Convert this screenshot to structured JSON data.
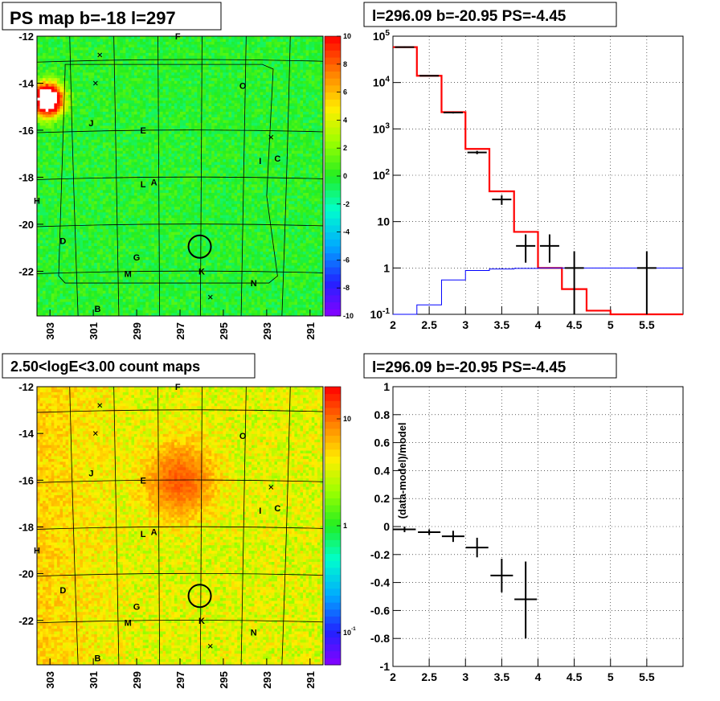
{
  "charts": [
    {
      "id": "psmap",
      "type": "heatmap",
      "title": "PS map b=-18 l=297",
      "xticks": [
        "303",
        "301",
        "299",
        "297",
        "295",
        "293",
        "291"
      ],
      "xtick_values": [
        303,
        301,
        299,
        297,
        295,
        293,
        291
      ],
      "yticks": [
        "-12",
        "-14",
        "-16",
        "-18",
        "-20",
        "-22"
      ],
      "ytick_values": [
        -12,
        -14,
        -16,
        -18,
        -20,
        -22
      ],
      "xlim": [
        303.6,
        290.4
      ],
      "ylim": [
        -23.9,
        -12
      ],
      "colorbar": {
        "scale": "linear",
        "range": [
          -10,
          10
        ],
        "labels": [
          "10",
          "8",
          "6",
          "4",
          "2",
          "0",
          "-2",
          "-4",
          "-6",
          "-8",
          "-10"
        ],
        "label_values": [
          10,
          8,
          6,
          4,
          2,
          0,
          -2,
          -4,
          -6,
          -8,
          -10
        ]
      },
      "background_level": 0.0,
      "hot_spot": {
        "l": 303.1,
        "b": -14.7,
        "value": 10
      },
      "source_circle": {
        "l": 296.09,
        "b": -20.95
      },
      "sources": [
        {
          "label": "F",
          "l": 297.1,
          "b": -12.0
        },
        {
          "label": "O",
          "l": 294.1,
          "b": -14.1
        },
        {
          "label": "J",
          "l": 301.1,
          "b": -15.7
        },
        {
          "label": "E",
          "l": 298.7,
          "b": -16.0
        },
        {
          "label": "I",
          "l": 293.3,
          "b": -17.3
        },
        {
          "label": "C",
          "l": 292.5,
          "b": -17.2
        },
        {
          "label": "L",
          "l": 298.7,
          "b": -18.3
        },
        {
          "label": "A",
          "l": 298.2,
          "b": -18.2
        },
        {
          "label": "H",
          "l": 303.6,
          "b": -19.0
        },
        {
          "label": "D",
          "l": 302.4,
          "b": -20.7
        },
        {
          "label": "G",
          "l": 299.0,
          "b": -21.4
        },
        {
          "label": "M",
          "l": 299.4,
          "b": -22.1
        },
        {
          "label": "K",
          "l": 296.0,
          "b": -22.0
        },
        {
          "label": "N",
          "l": 293.6,
          "b": -22.5
        },
        {
          "label": "B",
          "l": 300.8,
          "b": -23.6
        }
      ],
      "crosses": [
        {
          "l": 300.7,
          "b": -12.8
        },
        {
          "l": 300.9,
          "b": -14.0
        },
        {
          "l": 292.8,
          "b": -16.3
        },
        {
          "l": 295.6,
          "b": -23.1
        }
      ]
    },
    {
      "id": "spectrum",
      "type": "line",
      "title": "l=296.09 b=-20.95 PS=-4.45",
      "xlim": [
        2,
        6
      ],
      "ylim": [
        0.1,
        100000
      ],
      "yscale": "log",
      "grid": true,
      "xticks": [
        "2",
        "2.5",
        "3",
        "3.5",
        "4",
        "4.5",
        "5",
        "5.5"
      ],
      "xtick_values": [
        2,
        2.5,
        3,
        3.5,
        4,
        4.5,
        5,
        5.5
      ],
      "yticks": [
        "10^-1",
        "1",
        "10",
        "10^2",
        "10^3",
        "10^4",
        "10^5"
      ],
      "ytick_values": [
        0.1,
        1,
        10,
        100,
        1000,
        10000,
        100000
      ],
      "bin_edges": [
        2,
        2.33,
        2.67,
        3,
        3.33,
        3.67,
        4,
        4.33,
        4.67,
        5,
        5.33,
        5.67,
        6
      ],
      "series": [
        {
          "style": "red-histogram",
          "values": [
            58000,
            14000,
            2300,
            370,
            45,
            6,
            1,
            0.35,
            0.12,
            0.1,
            0.1,
            0.1
          ]
        },
        {
          "style": "blue-histogram",
          "values": [
            0.1,
            0.16,
            0.55,
            0.88,
            0.95,
            0.98,
            1,
            1,
            1,
            1,
            1,
            1
          ]
        },
        {
          "style": "black-points",
          "points": [
            {
              "x": 2.16,
              "y": 58000,
              "lo": 56000,
              "hi": 60000
            },
            {
              "x": 2.5,
              "y": 14000,
              "lo": 13600,
              "hi": 14400
            },
            {
              "x": 2.83,
              "y": 2250,
              "lo": 2150,
              "hi": 2350
            },
            {
              "x": 3.16,
              "y": 310,
              "lo": 285,
              "hi": 335
            },
            {
              "x": 3.5,
              "y": 30,
              "lo": 23,
              "hi": 37
            },
            {
              "x": 3.83,
              "y": 3,
              "lo": 1.3,
              "hi": 5.3
            },
            {
              "x": 4.16,
              "y": 3,
              "lo": 1.3,
              "hi": 5.3
            },
            {
              "x": 4.5,
              "y": 1,
              "lo": 0.1,
              "hi": 2.3
            },
            {
              "x": 5.5,
              "y": 1,
              "lo": 0.1,
              "hi": 2.3
            }
          ]
        }
      ]
    },
    {
      "id": "countmap",
      "type": "heatmap",
      "title": "2.50<logE<3.00 count maps",
      "xticks": [
        "303",
        "301",
        "299",
        "297",
        "295",
        "293",
        "291"
      ],
      "xtick_values": [
        303,
        301,
        299,
        297,
        295,
        293,
        291
      ],
      "yticks": [
        "-12",
        "-14",
        "-16",
        "-18",
        "-20",
        "-22"
      ],
      "ytick_values": [
        -12,
        -14,
        -16,
        -18,
        -20,
        -22
      ],
      "xlim": [
        303.6,
        290.4
      ],
      "ylim": [
        -23.9,
        -12
      ],
      "colorbar": {
        "scale": "log",
        "range": [
          0.05,
          20
        ],
        "labels": [
          "10",
          "1",
          "10^-1"
        ],
        "label_values": [
          10,
          1,
          0.1
        ]
      },
      "background_level": 3.5,
      "hot_spot": {
        "l": 297.0,
        "b": -16.0,
        "value": 8
      },
      "source_circle": {
        "l": 296.09,
        "b": -20.95
      },
      "sources": [
        {
          "label": "F",
          "l": 297.1,
          "b": -12.0
        },
        {
          "label": "O",
          "l": 294.1,
          "b": -14.1
        },
        {
          "label": "J",
          "l": 301.1,
          "b": -15.7
        },
        {
          "label": "E",
          "l": 298.7,
          "b": -16.0
        },
        {
          "label": "I",
          "l": 293.3,
          "b": -17.3
        },
        {
          "label": "C",
          "l": 292.5,
          "b": -17.2
        },
        {
          "label": "L",
          "l": 298.7,
          "b": -18.3
        },
        {
          "label": "A",
          "l": 298.2,
          "b": -18.2
        },
        {
          "label": "H",
          "l": 303.6,
          "b": -19.0
        },
        {
          "label": "D",
          "l": 302.4,
          "b": -20.7
        },
        {
          "label": "G",
          "l": 299.0,
          "b": -21.4
        },
        {
          "label": "M",
          "l": 299.4,
          "b": -22.1
        },
        {
          "label": "K",
          "l": 296.0,
          "b": -22.0
        },
        {
          "label": "N",
          "l": 293.6,
          "b": -22.5
        },
        {
          "label": "B",
          "l": 300.8,
          "b": -23.6
        }
      ],
      "crosses": [
        {
          "l": 300.7,
          "b": -12.8
        },
        {
          "l": 300.9,
          "b": -14.0
        },
        {
          "l": 292.8,
          "b": -16.3
        },
        {
          "l": 295.6,
          "b": -23.1
        }
      ]
    },
    {
      "id": "residual",
      "type": "scatter",
      "title": "l=296.09 b=-20.95 PS=-4.45",
      "ylabel": "(data-model)/model",
      "xlim": [
        2,
        6
      ],
      "ylim": [
        -1,
        1
      ],
      "grid": true,
      "xticks": [
        "2",
        "2.5",
        "3",
        "3.5",
        "4",
        "4.5",
        "5",
        "5.5"
      ],
      "xtick_values": [
        2,
        2.5,
        3,
        3.5,
        4,
        4.5,
        5,
        5.5
      ],
      "yticks": [
        "1",
        "0.8",
        "0.6",
        "0.4",
        "0.2",
        "0",
        "-0.2",
        "-0.4",
        "-0.6",
        "-0.8",
        "-1"
      ],
      "ytick_values": [
        1,
        0.8,
        0.6,
        0.4,
        0.2,
        0,
        -0.2,
        -0.4,
        -0.6,
        -0.8,
        -1
      ],
      "points": [
        {
          "x": 2.16,
          "y": -0.02,
          "lo": -0.04,
          "hi": 0.0
        },
        {
          "x": 2.5,
          "y": -0.04,
          "lo": -0.06,
          "hi": -0.02
        },
        {
          "x": 2.83,
          "y": -0.07,
          "lo": -0.11,
          "hi": -0.03
        },
        {
          "x": 3.16,
          "y": -0.15,
          "lo": -0.22,
          "hi": -0.08
        },
        {
          "x": 3.5,
          "y": -0.35,
          "lo": -0.47,
          "hi": -0.23
        },
        {
          "x": 3.83,
          "y": -0.52,
          "lo": -0.8,
          "hi": -0.25
        }
      ]
    }
  ]
}
